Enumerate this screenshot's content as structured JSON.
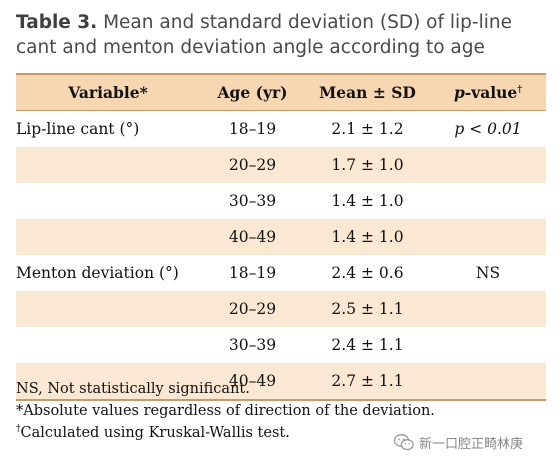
{
  "caption": {
    "label": "Table 3.",
    "text": "Mean and standard deviation (SD) of lip-line cant and menton deviation angle according to age"
  },
  "table": {
    "headers": {
      "variable": "Variable",
      "variable_mark": "*",
      "age": "Age (yr)",
      "mean": "Mean ± SD",
      "pvalue_italic": "p",
      "pvalue": "-value",
      "pvalue_mark": "†"
    },
    "rows": [
      {
        "variable": "Lip-line cant (°)",
        "age": "18–19",
        "mean": "2.1 ± 1.2",
        "p": "p < 0.01"
      },
      {
        "variable": "",
        "age": "20–29",
        "mean": "1.7 ± 1.0",
        "p": ""
      },
      {
        "variable": "",
        "age": "30–39",
        "mean": "1.4 ± 1.0",
        "p": ""
      },
      {
        "variable": "",
        "age": "40–49",
        "mean": "1.4 ± 1.0",
        "p": ""
      },
      {
        "variable": "Menton deviation (°)",
        "age": "18–19",
        "mean": "2.4 ± 0.6",
        "p": "NS"
      },
      {
        "variable": "",
        "age": "20–29",
        "mean": "2.5 ± 1.1",
        "p": ""
      },
      {
        "variable": "",
        "age": "30–39",
        "mean": "2.4 ± 1.1",
        "p": ""
      },
      {
        "variable": "",
        "age": "40–49",
        "mean": "2.7 ± 1.1",
        "p": ""
      }
    ]
  },
  "footnotes": {
    "ns": "NS, Not statistically significant.",
    "abs_mark": "*",
    "abs": "Absolute values regardless of direction of the deviation.",
    "kw_mark": "†",
    "kw": "Calculated using Kruskal-Wallis test."
  },
  "watermark": {
    "text": "新一口腔正畸林庚",
    "icon": "wechat-icon"
  },
  "colors": {
    "header_bg": "#f7d6b2",
    "shade_bg": "#fbe8d3",
    "rule": "#c59a6c"
  }
}
